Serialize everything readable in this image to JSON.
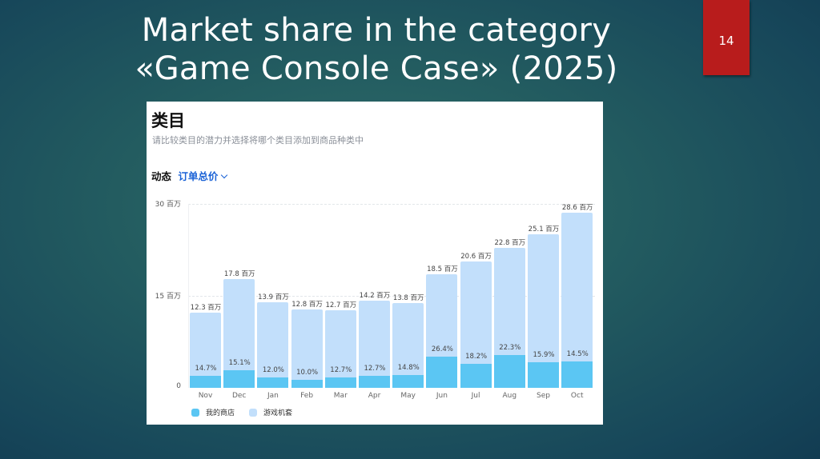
{
  "slide": {
    "title_line1": "Market share in the category",
    "title_line2": "«Game Console Case» (2025)",
    "page_number": "14"
  },
  "card": {
    "title": "类目",
    "subtitle": "请比较类目的潜力并选择将哪个类目添加到商品种类中",
    "dynamics_label": "动态",
    "metric_dropdown": "订单总价",
    "colors": {
      "my_store": "#5bc6f3",
      "category": "#c2dffb"
    }
  },
  "chart_data": {
    "type": "bar",
    "title": "类目",
    "subtitle": "请比较类目的潜力并选择将哪个类目添加到商品种类中",
    "xlabel": "",
    "ylabel": "订单总价",
    "ylim": [
      0,
      30
    ],
    "y_unit": "百万",
    "yticks": [
      "0",
      "15 百万",
      "30 百万"
    ],
    "grid": true,
    "legend_position": "bottom-left",
    "categories": [
      "Nov",
      "Dec",
      "Jan",
      "Feb",
      "Mar",
      "Apr",
      "May",
      "Jun",
      "Jul",
      "Aug",
      "Sep",
      "Oct"
    ],
    "series": [
      {
        "name": "游戏机套",
        "values": [
          12.3,
          17.8,
          13.9,
          12.8,
          12.7,
          14.2,
          13.8,
          18.5,
          20.6,
          22.8,
          25.1,
          28.6
        ],
        "labels": [
          "12.3 百万",
          "17.8 百万",
          "13.9 百万",
          "12.8 百万",
          "12.7 百万",
          "14.2 百万",
          "13.8 百万",
          "18.5 百万",
          "20.6 百万",
          "22.8 百万",
          "25.1 百万",
          "28.6 百万"
        ]
      },
      {
        "name": "我的商店",
        "share_percent": [
          14.7,
          15.1,
          12.0,
          10.0,
          12.7,
          12.7,
          14.8,
          26.4,
          18.2,
          22.3,
          15.9,
          14.5
        ],
        "labels": [
          "14.7%",
          "15.1%",
          "12.0%",
          "10.0%",
          "12.7%",
          "12.7%",
          "14.8%",
          "26.4%",
          "18.2%",
          "22.3%",
          "15.9%",
          "14.5%"
        ]
      }
    ],
    "legend": [
      "我的商店",
      "游戏机套"
    ]
  }
}
